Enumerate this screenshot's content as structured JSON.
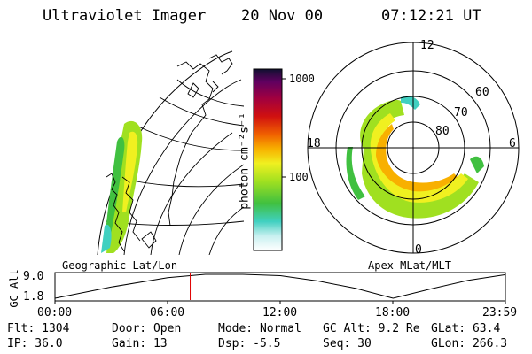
{
  "header": {
    "instrument": "Ultraviolet Imager",
    "date": "20 Nov 00",
    "time": "07:12:21 UT"
  },
  "colorbar": {
    "unit_label": "photon cm⁻²s⁻¹",
    "ticks": [
      "1000",
      "100"
    ]
  },
  "polar_plot": {
    "mlt_labels": {
      "top": "12",
      "left": "18",
      "right": "6",
      "bottom": "0"
    },
    "lat_labels": [
      "60",
      "70",
      "80"
    ]
  },
  "timeline": {
    "left_title": "Geographic Lat/Lon",
    "right_title": "Apex MLat/MLT",
    "ylabel": "GC Alt",
    "y_ticks": [
      "9.0",
      "1.8"
    ],
    "x_ticks": [
      "00:00",
      "06:00",
      "12:00",
      "18:00",
      "23:59"
    ],
    "current_time_hours": 7.2,
    "altitude_series": {
      "x_hours": [
        0,
        3,
        6,
        8,
        10,
        12,
        14,
        16,
        18,
        20,
        22,
        23.98
      ],
      "y_re": [
        1.8,
        5.2,
        8.0,
        9.0,
        9.1,
        8.6,
        7.0,
        4.8,
        1.8,
        4.6,
        7.2,
        8.9
      ],
      "ylim": [
        1.8,
        9.0
      ]
    }
  },
  "status": {
    "flt": "Flt: 1304",
    "ip": "IP: 36.0",
    "door": "Door: Open",
    "gain": "Gain: 13",
    "mode": "Mode: Normal",
    "dsp": "Dsp:    -5.5",
    "gcalt": "GC Alt: 9.2 Re",
    "seq": "Seq: 30",
    "glat": "GLat:  63.4",
    "glon": "GLon: 266.3"
  }
}
